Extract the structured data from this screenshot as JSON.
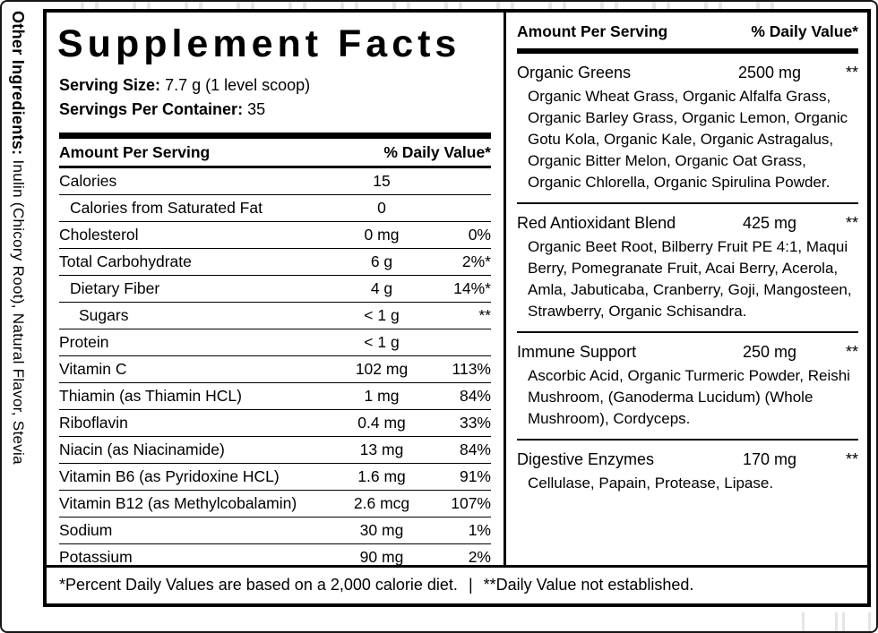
{
  "colors": {
    "ink": "#000000",
    "paper": "#ffffff"
  },
  "side": {
    "label": "Other Ingredients:",
    "value": "Inulin (Chicory Root), Natural Flavor, Stevia"
  },
  "facts": {
    "title": "Supplement Facts",
    "serving_size_label": "Serving Size:",
    "serving_size_value": "7.7 g (1 level scoop)",
    "servings_label": "Servings Per Container:",
    "servings_value": "35",
    "col_amount": "Amount Per Serving",
    "col_dv": "% Daily Value*",
    "rows": [
      {
        "name": "Calories",
        "amount": "15",
        "dv": ""
      },
      {
        "name": "Calories from Saturated Fat",
        "amount": "0",
        "dv": ""
      },
      {
        "name": "Cholesterol",
        "amount": "0 mg",
        "dv": "0%"
      },
      {
        "name": "Total Carbohydrate",
        "amount": "6 g",
        "dv": "2%*"
      },
      {
        "name": "Dietary Fiber",
        "amount": "4 g",
        "dv": "14%*"
      },
      {
        "name": "Sugars",
        "amount": "< 1 g",
        "dv": "**"
      },
      {
        "name": "Protein",
        "amount": "< 1 g",
        "dv": ""
      },
      {
        "name": "Vitamin C",
        "amount": "102 mg",
        "dv": "113%"
      },
      {
        "name": "Thiamin (as Thiamin HCL)",
        "amount": "1 mg",
        "dv": "84%"
      },
      {
        "name": "Riboflavin",
        "amount": "0.4 mg",
        "dv": "33%"
      },
      {
        "name": "Niacin (as Niacinamide)",
        "amount": "13 mg",
        "dv": "84%"
      },
      {
        "name": "Vitamin B6 (as Pyridoxine HCL)",
        "amount": "1.6 mg",
        "dv": "91%"
      },
      {
        "name": "Vitamin B12 (as Methylcobalamin)",
        "amount": "2.6 mcg",
        "dv": "107%"
      },
      {
        "name": "Sodium",
        "amount": "30 mg",
        "dv": "1%"
      },
      {
        "name": "Potassium",
        "amount": "90 mg",
        "dv": "2%"
      }
    ]
  },
  "blends": {
    "col_amount": "Amount Per Serving",
    "col_dv": "% Daily Value*",
    "items": [
      {
        "name": "Organic Greens",
        "amount": "2500 mg",
        "dv": "**",
        "ingredients": "Organic Wheat Grass, Organic Alfalfa Grass, Organic Barley Grass, Organic Lemon, Organic Gotu Kola, Organic Kale, Organic Astragalus, Organic Bitter Melon, Organic Oat Grass, Organic Chlorella, Organic Spirulina Powder."
      },
      {
        "name": "Red Antioxidant Blend",
        "amount": "425 mg",
        "dv": "**",
        "ingredients": "Organic Beet Root, Bilberry Fruit PE 4:1, Maqui Berry, Pomegranate Fruit, Acai Berry, Acerola, Amla, Jabuticaba, Cranberry, Goji, Mangosteen, Strawberry, Organic Schisandra."
      },
      {
        "name": "Immune Support",
        "amount": "250 mg",
        "dv": "**",
        "ingredients": "Ascorbic Acid, Organic Turmeric Powder, Reishi Mushroom, (Ganoderma Lucidum) (Whole Mushroom), Cordyceps."
      },
      {
        "name": "Digestive Enzymes",
        "amount": "170 mg",
        "dv": "**",
        "ingredients": "Cellulase, Papain, Protease, Lipase."
      }
    ]
  },
  "footnote": {
    "left": "*Percent Daily Values are based on a 2,000 calorie diet.",
    "separator": "|",
    "right": "**Daily Value not established."
  }
}
